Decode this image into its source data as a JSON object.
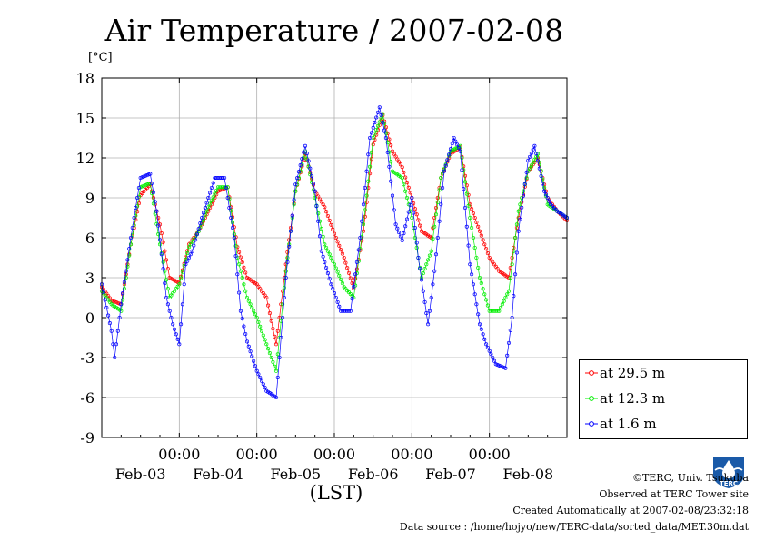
{
  "chart_data": {
    "type": "line",
    "title": "Air Temperature / 2007-02-08",
    "ylabel": "[°C]",
    "xlabel": "(LST)",
    "ylim": [
      -9,
      18
    ],
    "yticks": [
      "18",
      "15",
      "12",
      "9",
      "6",
      "3",
      "0",
      "-3",
      "-6",
      "-9"
    ],
    "xlim_hours": [
      0,
      144
    ],
    "xticks_time": [
      "00:00",
      "00:00",
      "00:00",
      "00:00",
      "00:00"
    ],
    "xticks_date": [
      "Feb-03",
      "Feb-04",
      "Feb-05",
      "Feb-06",
      "Feb-07",
      "Feb-08"
    ],
    "grid": true,
    "legend_position": "bottom-right",
    "series": [
      {
        "name": "at 29.5 m",
        "color": "#ff0000",
        "points": [
          [
            0,
            2.3
          ],
          [
            3,
            1.3
          ],
          [
            6,
            1.0
          ],
          [
            9,
            5.5
          ],
          [
            12,
            9.2
          ],
          [
            15,
            10.0
          ],
          [
            18,
            7.0
          ],
          [
            21,
            3.0
          ],
          [
            24,
            2.6
          ],
          [
            27,
            5.5
          ],
          [
            30,
            6.5
          ],
          [
            33,
            8.0
          ],
          [
            36,
            9.5
          ],
          [
            39,
            9.8
          ],
          [
            42,
            5.3
          ],
          [
            45,
            3.0
          ],
          [
            48,
            2.5
          ],
          [
            51,
            1.5
          ],
          [
            54,
            -2.0
          ],
          [
            57,
            4.0
          ],
          [
            60,
            9.5
          ],
          [
            63,
            12.3
          ],
          [
            66,
            9.5
          ],
          [
            69,
            8.3
          ],
          [
            72,
            6.3
          ],
          [
            75,
            4.5
          ],
          [
            78,
            2.2
          ],
          [
            81,
            6.5
          ],
          [
            84,
            13.0
          ],
          [
            87,
            15.2
          ],
          [
            90,
            12.5
          ],
          [
            93,
            11.3
          ],
          [
            96,
            9.0
          ],
          [
            99,
            6.5
          ],
          [
            102,
            6.0
          ],
          [
            105,
            10.5
          ],
          [
            108,
            12.3
          ],
          [
            111,
            12.8
          ],
          [
            114,
            8.5
          ],
          [
            117,
            6.5
          ],
          [
            120,
            4.5
          ],
          [
            123,
            3.5
          ],
          [
            126,
            3.0
          ],
          [
            129,
            7.5
          ],
          [
            132,
            11.0
          ],
          [
            135,
            12.0
          ],
          [
            138,
            9.0
          ],
          [
            141,
            8.0
          ],
          [
            144,
            7.3
          ]
        ]
      },
      {
        "name": "at 12.3 m",
        "color": "#00ee00",
        "points": [
          [
            0,
            2.0
          ],
          [
            3,
            1.0
          ],
          [
            6,
            0.5
          ],
          [
            9,
            5.5
          ],
          [
            12,
            9.8
          ],
          [
            15,
            10.1
          ],
          [
            18,
            5.5
          ],
          [
            21,
            1.5
          ],
          [
            24,
            2.5
          ],
          [
            27,
            5.3
          ],
          [
            30,
            6.5
          ],
          [
            33,
            8.3
          ],
          [
            36,
            9.8
          ],
          [
            39,
            9.8
          ],
          [
            42,
            4.5
          ],
          [
            45,
            1.5
          ],
          [
            48,
            0.0
          ],
          [
            51,
            -2.0
          ],
          [
            54,
            -4.0
          ],
          [
            57,
            3.5
          ],
          [
            60,
            9.5
          ],
          [
            63,
            12.5
          ],
          [
            66,
            9.0
          ],
          [
            69,
            5.5
          ],
          [
            72,
            4.0
          ],
          [
            75,
            2.3
          ],
          [
            78,
            1.5
          ],
          [
            81,
            7.0
          ],
          [
            84,
            13.5
          ],
          [
            87,
            15.3
          ],
          [
            90,
            11.0
          ],
          [
            93,
            10.5
          ],
          [
            96,
            7.5
          ],
          [
            99,
            3.0
          ],
          [
            102,
            5.0
          ],
          [
            105,
            10.5
          ],
          [
            108,
            12.5
          ],
          [
            111,
            12.9
          ],
          [
            114,
            7.5
          ],
          [
            117,
            3.0
          ],
          [
            120,
            0.5
          ],
          [
            123,
            0.5
          ],
          [
            126,
            2.0
          ],
          [
            129,
            8.0
          ],
          [
            132,
            11.0
          ],
          [
            135,
            12.3
          ],
          [
            138,
            8.5
          ],
          [
            141,
            8.0
          ],
          [
            144,
            7.5
          ]
        ]
      },
      {
        "name": "at 1.6 m",
        "color": "#0000ff",
        "points": [
          [
            0,
            2.5
          ],
          [
            3,
            -1.0
          ],
          [
            4,
            -3.0
          ],
          [
            6,
            1.0
          ],
          [
            9,
            6.0
          ],
          [
            12,
            10.5
          ],
          [
            15,
            10.8
          ],
          [
            17,
            8.0
          ],
          [
            20,
            1.5
          ],
          [
            22,
            -0.5
          ],
          [
            24,
            -2.0
          ],
          [
            26,
            4.0
          ],
          [
            28,
            5.0
          ],
          [
            31,
            7.5
          ],
          [
            35,
            10.5
          ],
          [
            38,
            10.5
          ],
          [
            41,
            6.0
          ],
          [
            43,
            0.5
          ],
          [
            45,
            -1.8
          ],
          [
            48,
            -4.0
          ],
          [
            51,
            -5.5
          ],
          [
            54,
            -6.0
          ],
          [
            57,
            3.0
          ],
          [
            60,
            10.0
          ],
          [
            63,
            12.9
          ],
          [
            66,
            9.5
          ],
          [
            68,
            5.0
          ],
          [
            71,
            2.5
          ],
          [
            74,
            0.5
          ],
          [
            77,
            0.5
          ],
          [
            80,
            6.0
          ],
          [
            83,
            13.5
          ],
          [
            86,
            15.8
          ],
          [
            88,
            13.5
          ],
          [
            91,
            7.0
          ],
          [
            93,
            5.8
          ],
          [
            96,
            9.0
          ],
          [
            98,
            4.5
          ],
          [
            101,
            -0.5
          ],
          [
            103,
            3.5
          ],
          [
            106,
            11.0
          ],
          [
            109,
            13.5
          ],
          [
            111,
            12.5
          ],
          [
            114,
            4.0
          ],
          [
            117,
            -0.5
          ],
          [
            119,
            -2.0
          ],
          [
            122,
            -3.5
          ],
          [
            125,
            -3.8
          ],
          [
            127,
            0.0
          ],
          [
            129,
            6.5
          ],
          [
            132,
            11.8
          ],
          [
            134,
            12.9
          ],
          [
            137,
            9.5
          ],
          [
            139,
            8.5
          ],
          [
            141,
            8.0
          ],
          [
            144,
            7.5
          ]
        ]
      }
    ]
  },
  "footer": {
    "copyright": "©TERC, Univ. Tsukuba",
    "observed": "Observed at TERC Tower site",
    "created": "Created Automatically at 2007-02-08/23:32:18",
    "source": "Data source : /home/hojyo/new/TERC-data/sorted_data/MET.30m.dat"
  },
  "logo": {
    "text": "TERC",
    "color": "#1a5aa8"
  }
}
